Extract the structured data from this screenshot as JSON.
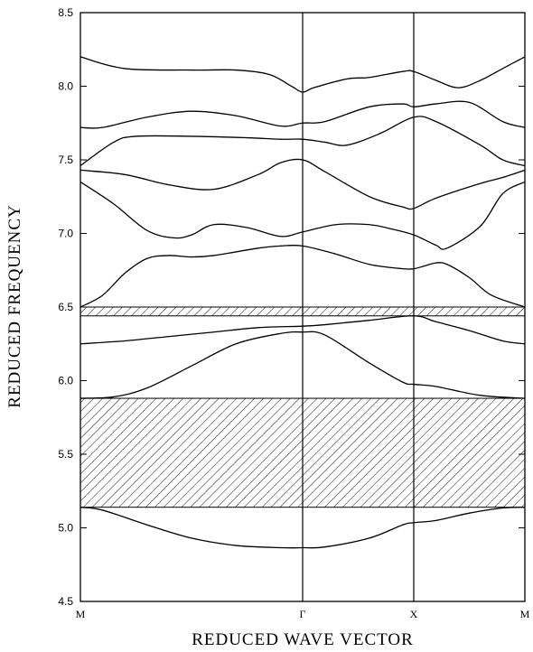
{
  "chart_data": {
    "type": "line",
    "xlabel": "REDUCED WAVE VECTOR",
    "ylabel": "REDUCED FREQUENCY",
    "ylim": [
      4.5,
      8.5
    ],
    "yticks": [
      "4.5",
      "5.0",
      "5.5",
      "6.0",
      "6.5",
      "7.0",
      "7.5",
      "8.0",
      "8.5"
    ],
    "kpoints": [
      {
        "label": "M",
        "x": 0
      },
      {
        "label": "Γ",
        "x": 1
      },
      {
        "label": "X",
        "x": 1.5
      },
      {
        "label": "M",
        "x": 2
      }
    ],
    "band_gaps": [
      {
        "ymin": 5.14,
        "ymax": 5.88,
        "style": "hatched"
      },
      {
        "ymin": 6.44,
        "ymax": 6.5,
        "style": "hatched"
      }
    ],
    "series": [
      {
        "x": [
          0,
          0.1,
          0.3,
          0.5,
          0.7,
          0.9,
          1.0,
          1.1,
          1.3,
          1.45,
          1.5,
          1.6,
          1.75,
          1.9,
          2.0
        ],
        "values": [
          5.14,
          5.12,
          5.02,
          4.93,
          4.88,
          4.865,
          4.865,
          4.87,
          4.93,
          5.02,
          5.035,
          5.05,
          5.1,
          5.135,
          5.14
        ]
      },
      {
        "x": [
          0,
          0.15,
          0.3,
          0.5,
          0.7,
          0.9,
          1.0,
          1.1,
          1.3,
          1.45,
          1.5,
          1.6,
          1.8,
          2.0
        ],
        "values": [
          5.88,
          5.89,
          5.95,
          6.1,
          6.25,
          6.32,
          6.33,
          6.31,
          6.12,
          5.99,
          5.975,
          5.96,
          5.9,
          5.88
        ]
      },
      {
        "x": [
          0,
          0.2,
          0.4,
          0.6,
          0.8,
          1.0,
          1.1,
          1.3,
          1.5,
          1.6,
          1.75,
          1.9,
          2.0
        ],
        "values": [
          6.25,
          6.27,
          6.3,
          6.33,
          6.36,
          6.37,
          6.38,
          6.41,
          6.44,
          6.4,
          6.34,
          6.27,
          6.25
        ]
      },
      {
        "x": [
          0,
          0.1,
          0.2,
          0.3,
          0.4,
          0.5,
          0.6,
          0.8,
          0.9,
          1.0,
          1.15,
          1.3,
          1.45,
          1.5,
          1.55,
          1.6,
          1.65,
          1.75,
          1.85,
          2.0
        ],
        "values": [
          6.5,
          6.58,
          6.73,
          6.83,
          6.85,
          6.84,
          6.85,
          6.9,
          6.915,
          6.915,
          6.86,
          6.79,
          6.76,
          6.76,
          6.78,
          6.8,
          6.79,
          6.7,
          6.58,
          6.5
        ]
      },
      {
        "x": [
          0,
          0.15,
          0.3,
          0.42,
          0.5,
          0.6,
          0.75,
          0.9,
          1.0,
          1.15,
          1.3,
          1.4,
          1.5,
          1.6,
          1.65,
          1.8,
          1.9,
          2.0
        ],
        "values": [
          7.35,
          7.2,
          7.02,
          6.97,
          6.99,
          7.06,
          7.04,
          6.98,
          7.01,
          7.06,
          7.06,
          7.03,
          6.99,
          6.92,
          6.9,
          7.05,
          7.27,
          7.35
        ]
      },
      {
        "x": [
          0,
          0.2,
          0.4,
          0.6,
          0.8,
          0.9,
          1.0,
          1.1,
          1.3,
          1.45,
          1.5,
          1.6,
          1.8,
          1.9,
          2.0
        ],
        "values": [
          7.43,
          7.4,
          7.33,
          7.3,
          7.4,
          7.48,
          7.5,
          7.42,
          7.25,
          7.18,
          7.17,
          7.24,
          7.34,
          7.38,
          7.43
        ]
      },
      {
        "x": [
          0,
          0.15,
          0.25,
          0.5,
          0.75,
          0.9,
          1.0,
          1.1,
          1.2,
          1.35,
          1.5,
          1.6,
          1.8,
          1.9,
          2.0
        ],
        "values": [
          7.46,
          7.62,
          7.66,
          7.66,
          7.65,
          7.64,
          7.64,
          7.62,
          7.6,
          7.68,
          7.79,
          7.76,
          7.6,
          7.5,
          7.46
        ]
      },
      {
        "x": [
          0,
          0.1,
          0.3,
          0.5,
          0.7,
          0.9,
          1.0,
          1.1,
          1.3,
          1.45,
          1.5,
          1.6,
          1.75,
          1.9,
          2.0
        ],
        "values": [
          7.72,
          7.72,
          7.79,
          7.83,
          7.8,
          7.73,
          7.75,
          7.76,
          7.86,
          7.88,
          7.86,
          7.88,
          7.89,
          7.76,
          7.72
        ]
      },
      {
        "x": [
          0,
          0.2,
          0.5,
          0.7,
          0.85,
          0.95,
          1.0,
          1.05,
          1.2,
          1.3,
          1.45,
          1.5,
          1.6,
          1.7,
          1.8,
          1.9,
          2.0
        ],
        "values": [
          8.2,
          8.12,
          8.11,
          8.11,
          8.08,
          8.0,
          7.96,
          7.99,
          8.05,
          8.06,
          8.1,
          8.1,
          8.04,
          7.99,
          8.04,
          8.12,
          8.2
        ]
      }
    ]
  }
}
